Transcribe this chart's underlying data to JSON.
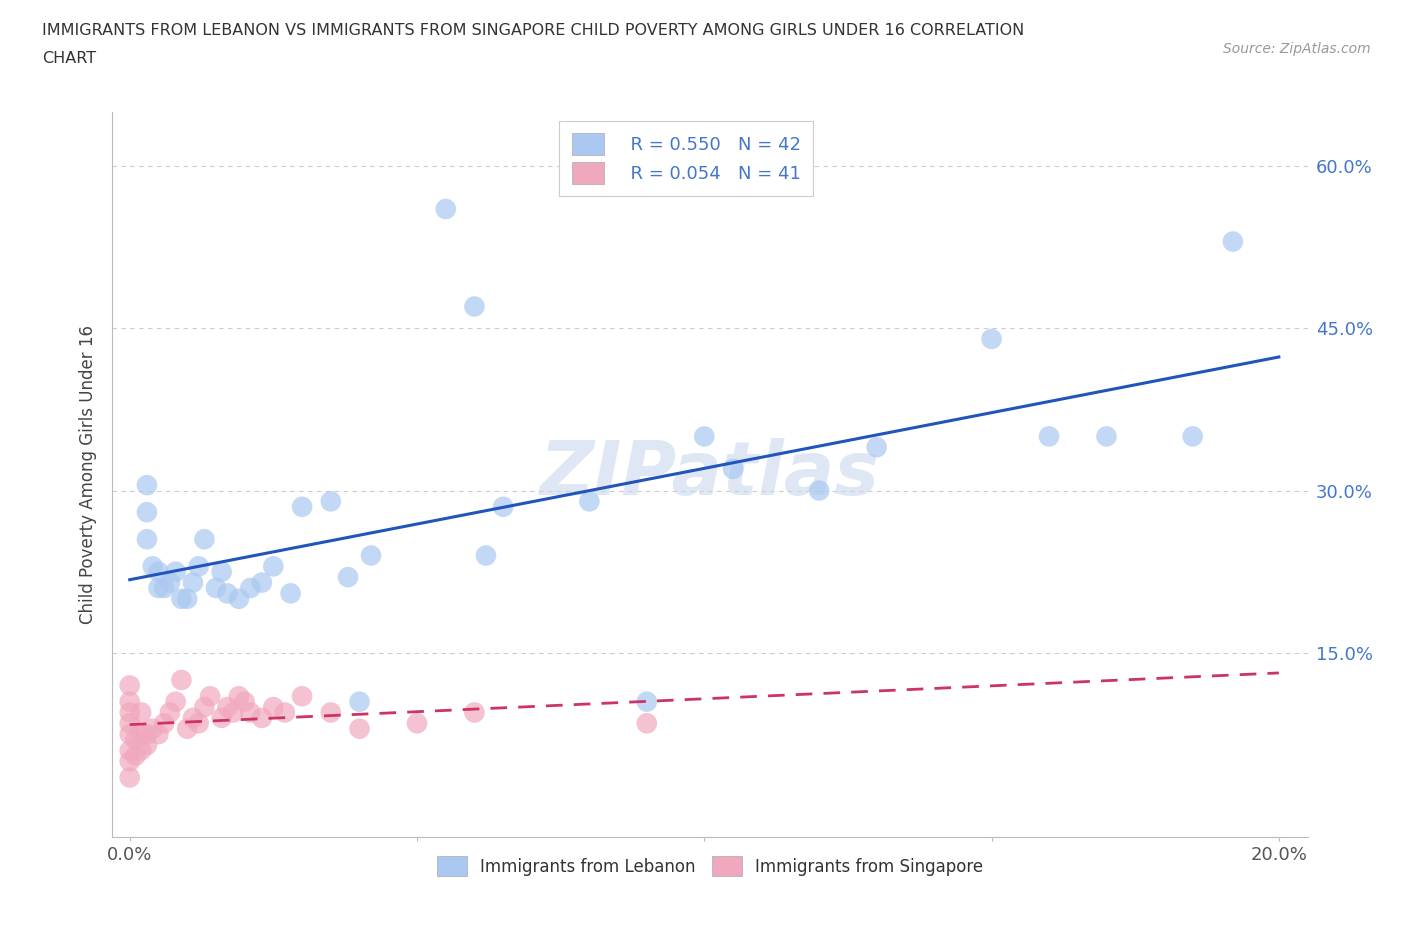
{
  "title_line1": "IMMIGRANTS FROM LEBANON VS IMMIGRANTS FROM SINGAPORE CHILD POVERTY AMONG GIRLS UNDER 16 CORRELATION",
  "title_line2": "CHART",
  "source": "Source: ZipAtlas.com",
  "ylabel_label": "Child Poverty Among Girls Under 16",
  "xlim": [
    -0.003,
    0.205
  ],
  "ylim": [
    -0.02,
    0.65
  ],
  "lebanon_R": 0.55,
  "lebanon_N": 42,
  "singapore_R": 0.054,
  "singapore_N": 41,
  "lebanon_color": "#aac8f0",
  "singapore_color": "#f0a8bc",
  "lebanon_line_color": "#2255bb",
  "singapore_line_color": "#cc3366",
  "watermark_color": "#c8d8ec",
  "background_color": "#ffffff",
  "grid_color": "#cccccc",
  "ytick_color": "#4477cc",
  "xtick_color": "#555555",
  "lebanon_x": [
    0.003,
    0.003,
    0.003,
    0.004,
    0.005,
    0.005,
    0.006,
    0.007,
    0.008,
    0.009,
    0.01,
    0.011,
    0.012,
    0.013,
    0.015,
    0.016,
    0.017,
    0.019,
    0.021,
    0.023,
    0.025,
    0.028,
    0.03,
    0.035,
    0.038,
    0.04,
    0.042,
    0.055,
    0.06,
    0.062,
    0.065,
    0.08,
    0.09,
    0.1,
    0.105,
    0.12,
    0.13,
    0.15,
    0.16,
    0.17,
    0.185,
    0.192
  ],
  "lebanon_y": [
    0.305,
    0.28,
    0.255,
    0.23,
    0.225,
    0.21,
    0.21,
    0.215,
    0.225,
    0.2,
    0.2,
    0.215,
    0.23,
    0.255,
    0.21,
    0.225,
    0.205,
    0.2,
    0.21,
    0.215,
    0.23,
    0.205,
    0.285,
    0.29,
    0.22,
    0.105,
    0.24,
    0.56,
    0.47,
    0.24,
    0.285,
    0.29,
    0.105,
    0.35,
    0.32,
    0.3,
    0.34,
    0.44,
    0.35,
    0.35,
    0.35,
    0.53
  ],
  "singapore_x": [
    0.0,
    0.0,
    0.0,
    0.0,
    0.0,
    0.0,
    0.0,
    0.0,
    0.001,
    0.001,
    0.002,
    0.002,
    0.002,
    0.003,
    0.003,
    0.004,
    0.005,
    0.006,
    0.007,
    0.008,
    0.009,
    0.01,
    0.011,
    0.012,
    0.013,
    0.014,
    0.016,
    0.017,
    0.018,
    0.019,
    0.02,
    0.021,
    0.023,
    0.025,
    0.027,
    0.03,
    0.035,
    0.04,
    0.05,
    0.06,
    0.09
  ],
  "singapore_y": [
    0.035,
    0.05,
    0.06,
    0.075,
    0.085,
    0.095,
    0.105,
    0.12,
    0.055,
    0.07,
    0.06,
    0.075,
    0.095,
    0.065,
    0.075,
    0.08,
    0.075,
    0.085,
    0.095,
    0.105,
    0.125,
    0.08,
    0.09,
    0.085,
    0.1,
    0.11,
    0.09,
    0.1,
    0.095,
    0.11,
    0.105,
    0.095,
    0.09,
    0.1,
    0.095,
    0.11,
    0.095,
    0.08,
    0.085,
    0.095,
    0.085
  ]
}
